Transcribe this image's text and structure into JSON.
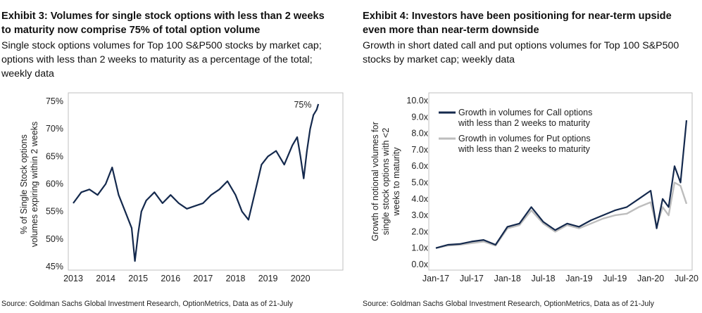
{
  "exhibit3": {
    "title": "Exhibit 3: Volumes for single stock options with less than 2 weeks to maturity now comprise 75% of total option volume",
    "subtitle": "Single stock options volumes for Top 100 S&P500 stocks by market cap; options with less than 2 weeks to maturity as a percentage of the total; weekly data",
    "source": "Source: Goldman Sachs Global Investment Research, OptionMetrics, Data as of 21-July",
    "colors": {
      "line": "#14294d",
      "box": "#bfbfbf"
    }
  },
  "exhibit4": {
    "title": "Exhibit 4: Investors have been positioning for near-term upside even more than near-term downside",
    "subtitle": "Growth in short dated call and put options volumes for Top 100 S&P500 stocks by market cap; weekly data",
    "source": "Source: Goldman Sachs Global Investment Research, OptionMetrics, Data as of 21-July",
    "colors": {
      "call": "#14294d",
      "put": "#bdbdbd",
      "box": "#bfbfbf"
    }
  },
  "chart_data": [
    {
      "type": "line",
      "title": "Exhibit 3: Volumes for single stock options with less than 2 weeks to maturity now comprise 75% of total option volume",
      "ylabel": "% of Single Stock options volumes expiring within 2 weeks",
      "xlabel": "",
      "x_ticks": [
        "2013",
        "2014",
        "2015",
        "2016",
        "2017",
        "2018",
        "2019",
        "2020"
      ],
      "y_ticks": [
        "45%",
        "50%",
        "55%",
        "60%",
        "65%",
        "70%",
        "75%"
      ],
      "xlim": [
        2013,
        2020.7
      ],
      "ylim": [
        45,
        75
      ],
      "annotation": "75%",
      "grid": false,
      "x": [
        2013.0,
        2013.25,
        2013.5,
        2013.75,
        2014.0,
        2014.2,
        2014.4,
        2014.6,
        2014.8,
        2014.9,
        2015.0,
        2015.1,
        2015.25,
        2015.5,
        2015.75,
        2016.0,
        2016.25,
        2016.5,
        2016.75,
        2017.0,
        2017.25,
        2017.5,
        2017.75,
        2018.0,
        2018.2,
        2018.4,
        2018.6,
        2018.8,
        2019.0,
        2019.25,
        2019.5,
        2019.75,
        2019.9,
        2020.0,
        2020.1,
        2020.2,
        2020.3,
        2020.4,
        2020.5,
        2020.55
      ],
      "values": [
        56.5,
        58.5,
        59.0,
        58.0,
        60.0,
        63.0,
        58.0,
        55.0,
        52.0,
        46.0,
        51.0,
        55.0,
        57.0,
        58.5,
        56.5,
        58.0,
        56.5,
        55.5,
        56.0,
        56.5,
        58.0,
        59.0,
        60.5,
        58.0,
        55.0,
        53.5,
        58.5,
        63.5,
        65.0,
        66.0,
        63.5,
        67.0,
        68.5,
        65.0,
        61.0,
        66.0,
        70.0,
        72.5,
        73.5,
        74.5
      ]
    },
    {
      "type": "line",
      "title": "Exhibit 4: Investors have been positioning for near-term upside even more than near-term downside",
      "ylabel": "Growth of notional volumes for single stock options with <2 weeks to maturity",
      "xlabel": "",
      "categories": [
        "Jan-17",
        "Jul-17",
        "Jan-18",
        "Jul-18",
        "Jan-19",
        "Jul-19",
        "Jan-20",
        "Jul-20"
      ],
      "y_ticks": [
        "0.0x",
        "1.0x",
        "2.0x",
        "3.0x",
        "4.0x",
        "5.0x",
        "6.0x",
        "7.0x",
        "8.0x",
        "9.0x",
        "10.0x"
      ],
      "xlim": [
        0,
        43
      ],
      "ylim": [
        0,
        10
      ],
      "legend_position": "top-left",
      "grid": false,
      "x": [
        0,
        2,
        4,
        6,
        8,
        10,
        12,
        14,
        16,
        18,
        20,
        22,
        24,
        26,
        28,
        30,
        32,
        34,
        36,
        37,
        38,
        39,
        40,
        41,
        42
      ],
      "series": [
        {
          "name": "Growth in volumes for Call options with less than 2 weeks to maturity",
          "values": [
            1.0,
            1.2,
            1.25,
            1.4,
            1.5,
            1.2,
            2.3,
            2.5,
            3.5,
            2.6,
            2.1,
            2.5,
            2.3,
            2.7,
            3.0,
            3.3,
            3.5,
            4.0,
            4.5,
            2.2,
            4.0,
            3.5,
            6.0,
            5.0,
            8.8
          ]
        },
        {
          "name": "Growth in volumes for Put options with less than 2 weeks to maturity",
          "values": [
            1.0,
            1.15,
            1.2,
            1.3,
            1.4,
            1.15,
            2.2,
            2.4,
            3.3,
            2.5,
            2.0,
            2.4,
            2.2,
            2.5,
            2.8,
            3.0,
            3.1,
            3.5,
            3.8,
            2.3,
            3.5,
            3.0,
            5.0,
            4.8,
            3.7
          ]
        }
      ]
    }
  ]
}
